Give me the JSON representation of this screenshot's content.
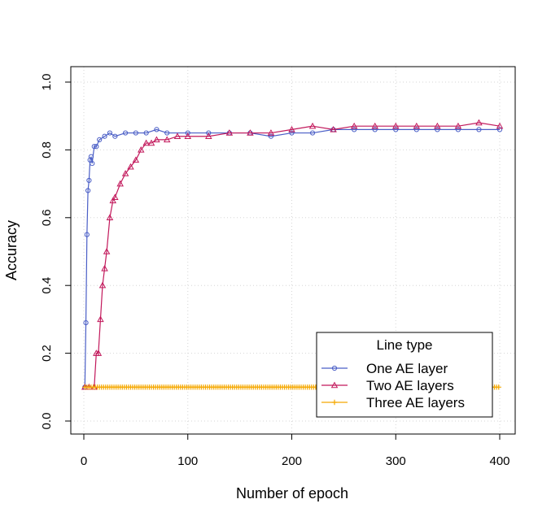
{
  "chart_data": {
    "type": "line",
    "title": "",
    "xlabel": "Number of epoch",
    "ylabel": "Accuracy",
    "xlim": [
      0,
      400
    ],
    "ylim": [
      0.0,
      1.0
    ],
    "x_ticks": [
      "0",
      "100",
      "200",
      "300",
      "400"
    ],
    "y_ticks": [
      "0.0",
      "0.2",
      "0.4",
      "0.6",
      "0.8",
      "1.0"
    ],
    "grid": true,
    "legend": {
      "title": "Line type",
      "position": "bottom-right",
      "entries": [
        "One AE layer",
        "Two AE layers",
        "Three AE layers"
      ]
    },
    "series": [
      {
        "name": "One AE layer",
        "color": "#4a5ec6",
        "marker": "circle",
        "x": [
          1,
          2,
          3,
          4,
          5,
          6,
          7,
          8,
          10,
          12,
          15,
          20,
          25,
          30,
          40,
          50,
          60,
          70,
          80,
          100,
          120,
          140,
          160,
          180,
          200,
          220,
          240,
          260,
          280,
          300,
          320,
          340,
          360,
          380,
          400
        ],
        "values": [
          0.1,
          0.29,
          0.55,
          0.68,
          0.71,
          0.77,
          0.78,
          0.76,
          0.81,
          0.81,
          0.83,
          0.84,
          0.85,
          0.84,
          0.85,
          0.85,
          0.85,
          0.86,
          0.85,
          0.85,
          0.85,
          0.85,
          0.85,
          0.84,
          0.85,
          0.85,
          0.86,
          0.86,
          0.86,
          0.86,
          0.86,
          0.86,
          0.86,
          0.86,
          0.86
        ]
      },
      {
        "name": "Two AE layers",
        "color": "#c2185b",
        "marker": "triangle",
        "x": [
          1,
          5,
          10,
          12,
          14,
          16,
          18,
          20,
          22,
          25,
          28,
          30,
          35,
          40,
          45,
          50,
          55,
          60,
          65,
          70,
          80,
          90,
          100,
          120,
          140,
          160,
          180,
          200,
          220,
          240,
          260,
          280,
          300,
          320,
          340,
          360,
          380,
          400
        ],
        "values": [
          0.1,
          0.1,
          0.1,
          0.2,
          0.2,
          0.3,
          0.4,
          0.45,
          0.5,
          0.6,
          0.65,
          0.66,
          0.7,
          0.73,
          0.75,
          0.77,
          0.8,
          0.82,
          0.82,
          0.83,
          0.83,
          0.84,
          0.84,
          0.84,
          0.85,
          0.85,
          0.85,
          0.86,
          0.87,
          0.86,
          0.87,
          0.87,
          0.87,
          0.87,
          0.87,
          0.87,
          0.88,
          0.87
        ]
      },
      {
        "name": "Three AE layers",
        "color": "#f5a800",
        "marker": "plus",
        "x": [
          1,
          400
        ],
        "values": [
          0.1,
          0.1
        ]
      }
    ]
  }
}
